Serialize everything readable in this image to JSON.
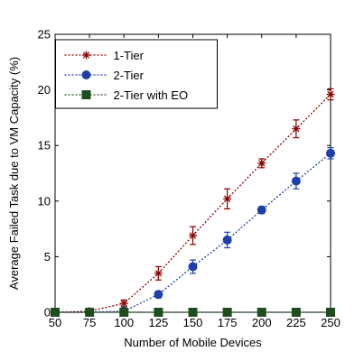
{
  "chart_data": {
    "type": "line",
    "xlabel": "Number of Mobile Devices",
    "ylabel": "Average Failed Task due to VM Capacity (%)",
    "x": [
      50,
      75,
      100,
      125,
      150,
      175,
      200,
      225,
      250
    ],
    "xticks": [
      "50",
      "75",
      "100",
      "125",
      "150",
      "175",
      "200",
      "225",
      "250"
    ],
    "yticks": [
      "0",
      "5",
      "10",
      "15",
      "20",
      "25"
    ],
    "xlim": [
      50,
      250
    ],
    "ylim": [
      0,
      25
    ],
    "grid": false,
    "legend_position": "top-left",
    "series": [
      {
        "name": "1-Tier",
        "color": "#8b0000",
        "marker": "star",
        "values": [
          0.0,
          0.1,
          0.8,
          3.5,
          6.9,
          10.2,
          13.4,
          16.5,
          19.6
        ],
        "errors": [
          0.05,
          0.15,
          0.3,
          0.6,
          0.8,
          0.9,
          0.4,
          0.8,
          0.5
        ]
      },
      {
        "name": "2-Tier",
        "color": "#1f3fa8",
        "marker": "circle",
        "values": [
          0.0,
          0.0,
          0.1,
          1.6,
          4.1,
          6.5,
          9.2,
          11.8,
          14.3
        ],
        "errors": [
          0.05,
          0.05,
          0.1,
          0.3,
          0.6,
          0.7,
          0.3,
          0.7,
          0.5
        ]
      },
      {
        "name": "2-Tier with EO",
        "color": "#1e4d1e",
        "marker": "square",
        "values": [
          0,
          0,
          0,
          0,
          0,
          0,
          0,
          0,
          0
        ],
        "errors": [
          0,
          0,
          0,
          0,
          0,
          0,
          0,
          0,
          0
        ]
      }
    ]
  }
}
